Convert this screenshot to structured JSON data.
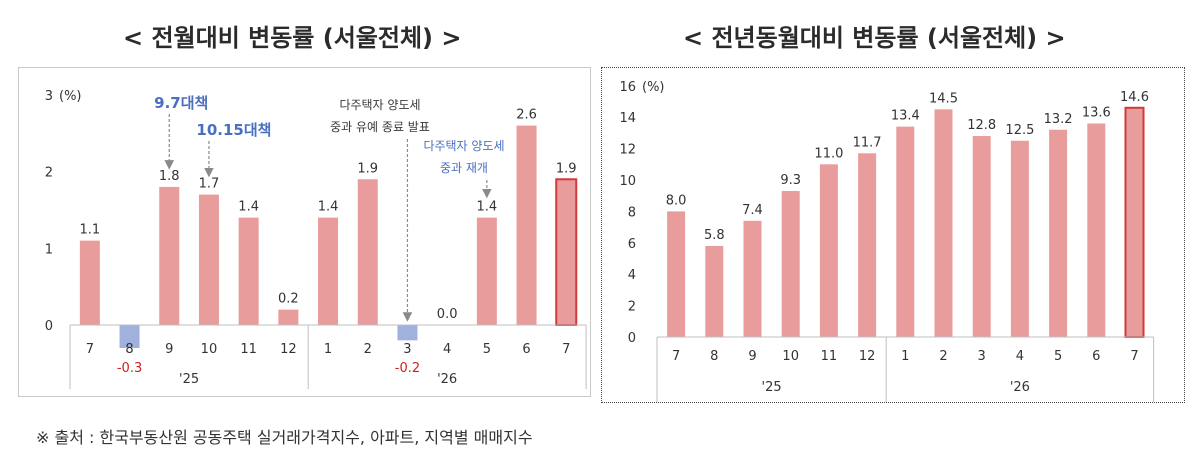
{
  "titles": {
    "left": "< 전월대비 변동률 (서울전체) >",
    "right": "< 전년동월대비 변동률 (서울전체) >"
  },
  "source": "※ 출처 : 한국부동산원 공동주택 실거래가격지수, 아파트, 지역별 매매지수",
  "colors": {
    "positive_bar": "#e99c9c",
    "negative_bar": "#9fb1dc",
    "highlight_border": "#d03a3a",
    "negative_label": "#d02020",
    "annotation": "#4a6fc0",
    "annotation_dark": "#3a3a3a"
  },
  "chart_data": [
    {
      "type": "bar",
      "ylabel": "(%)",
      "ylim": [
        -0.3,
        3
      ],
      "yticks": [
        "0",
        "1",
        "2",
        "3"
      ],
      "grid": false,
      "categories": [
        "7",
        "8",
        "9",
        "10",
        "11",
        "12",
        "1",
        "2",
        "3",
        "4",
        "5",
        "6",
        "7"
      ],
      "values": [
        1.1,
        -0.3,
        1.8,
        1.7,
        1.4,
        0.2,
        1.4,
        1.9,
        -0.2,
        0.0,
        1.4,
        2.6,
        1.9
      ],
      "value_labels": [
        "1.1",
        "-0.3",
        "1.8",
        "1.7",
        "1.4",
        "0.2",
        "1.4",
        "1.9",
        "-0.2",
        "0.0",
        "1.4",
        "2.6",
        "1.9"
      ],
      "year_groups": [
        {
          "label": "'25",
          "count": 6
        },
        {
          "label": "'26",
          "count": 7
        }
      ],
      "highlight_index": 12,
      "annotations": [
        {
          "lines": [
            "9.7대책"
          ],
          "target_index": 2,
          "style": "policy"
        },
        {
          "lines": [
            "10.15대책"
          ],
          "target_index": 3,
          "style": "policy"
        },
        {
          "lines": [
            "다주택자 양도세",
            "중과 유예 종료 발표"
          ],
          "target_index": 8,
          "style": "note"
        },
        {
          "lines": [
            "다주택자 양도세",
            "중과 재개"
          ],
          "target_index": 10,
          "style": "note"
        }
      ]
    },
    {
      "type": "bar",
      "ylabel": "(%)",
      "ylim": [
        0,
        16
      ],
      "yticks": [
        "0",
        "2",
        "4",
        "6",
        "8",
        "10",
        "12",
        "14",
        "16"
      ],
      "grid": false,
      "categories": [
        "7",
        "8",
        "9",
        "10",
        "11",
        "12",
        "1",
        "2",
        "3",
        "4",
        "5",
        "6",
        "7"
      ],
      "values": [
        8.0,
        5.8,
        7.4,
        9.3,
        11.0,
        11.7,
        13.4,
        14.5,
        12.8,
        12.5,
        13.2,
        13.6,
        14.6
      ],
      "value_labels": [
        "8.0",
        "5.8",
        "7.4",
        "9.3",
        "11.0",
        "11.7",
        "13.4",
        "14.5",
        "12.8",
        "12.5",
        "13.2",
        "13.6",
        "14.6"
      ],
      "year_groups": [
        {
          "label": "'25",
          "count": 6
        },
        {
          "label": "'26",
          "count": 7
        }
      ],
      "highlight_index": 12
    }
  ]
}
